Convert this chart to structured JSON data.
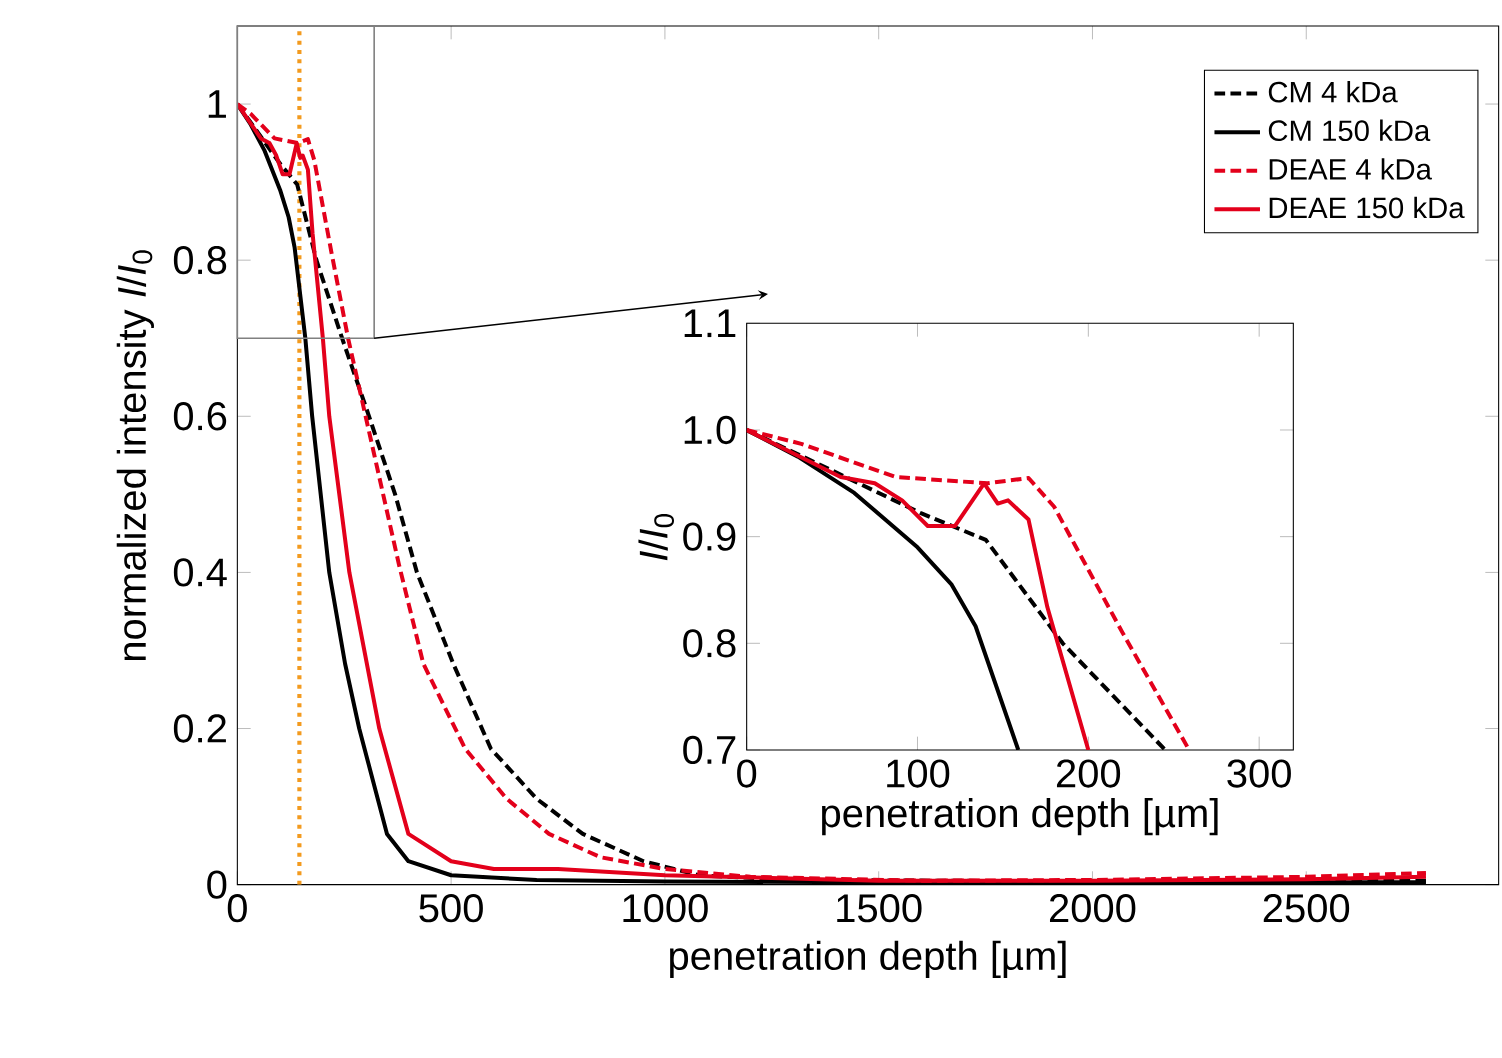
{
  "chart_data": [
    {
      "type": "line",
      "xlabel": "penetration depth [µm]",
      "ylabel": "normalized intensity *I*/*I*$_{0}$",
      "xlim": [
        0,
        2950
      ],
      "xticks": [
        0,
        500,
        1000,
        1500,
        2000,
        2500
      ],
      "ylim": [
        0,
        1.1
      ],
      "yticks": [
        0,
        0.2,
        0.4,
        0.6,
        0.8,
        1
      ],
      "legend": "top right",
      "ref_lines": [
        {
          "axis": "x",
          "value": 145,
          "color": "#f39a1e",
          "line_style": "dotted"
        }
      ],
      "series": [
        {
          "name": "CM 4 kDa",
          "color": "#000000",
          "line_style": "dashed",
          "x": [
            0,
            50,
            102,
            140,
            185,
            245,
            308,
            369,
            420,
            505,
            593,
            700,
            808,
            950,
            1080,
            1300,
            2000,
            2780
          ],
          "values": [
            1,
            0.962,
            0.922,
            0.897,
            0.8,
            0.7,
            0.6,
            0.5,
            0.4,
            0.283,
            0.174,
            0.11,
            0.065,
            0.03,
            0.012,
            0.006,
            0.004,
            0.005
          ]
        },
        {
          "name": "CM 150 kDa",
          "color": "#000000",
          "line_style": "solid",
          "x": [
            0,
            30,
            63,
            100,
            120,
            134,
            159,
            175,
            215,
            252,
            285,
            350,
            400,
            500,
            700,
            1000,
            1500,
            2000,
            2780
          ],
          "values": [
            1,
            0.975,
            0.941,
            0.89,
            0.855,
            0.816,
            0.7,
            0.6,
            0.4,
            0.283,
            0.2,
            0.065,
            0.03,
            0.012,
            0.006,
            0.004,
            0.003,
            0.003,
            0.003
          ]
        },
        {
          "name": "DEAE 4 kDa",
          "color": "#e3001b",
          "line_style": "dashed",
          "x": [
            0,
            32,
            87,
            141,
            165,
            180,
            220,
            259,
            300,
            341,
            378,
            435,
            533,
            630,
            729,
            850,
            1000,
            1200,
            1600,
            2000,
            2500,
            2780
          ],
          "values": [
            1,
            0.987,
            0.956,
            0.95,
            0.955,
            0.928,
            0.81,
            0.7,
            0.6,
            0.5,
            0.41,
            0.283,
            0.174,
            0.11,
            0.065,
            0.035,
            0.02,
            0.01,
            0.005,
            0.006,
            0.01,
            0.015
          ]
        },
        {
          "name": "DEAE 150 kDa",
          "color": "#e3001b",
          "line_style": "solid",
          "x": [
            0,
            55,
            75,
            91,
            106,
            122,
            139,
            147,
            153,
            165,
            176,
            200,
            215,
            262,
            332,
            400,
            500,
            600,
            750,
            1000,
            1500,
            2000,
            2500,
            2780
          ],
          "values": [
            1,
            0.956,
            0.95,
            0.934,
            0.91,
            0.91,
            0.95,
            0.931,
            0.934,
            0.916,
            0.834,
            0.7,
            0.6,
            0.4,
            0.2,
            0.065,
            0.03,
            0.02,
            0.02,
            0.012,
            0.005,
            0.005,
            0.007,
            0.01
          ]
        }
      ]
    },
    {
      "type": "line",
      "xlabel": "penetration depth [µm]",
      "ylabel": "*I*/*I*$_{0}$",
      "xlim": [
        0,
        320
      ],
      "xticks": [
        0,
        100,
        200,
        300
      ],
      "ylim": [
        0.7,
        1.1
      ],
      "yticks": [
        0.7,
        0.8,
        0.9,
        {
          "value": 1.0,
          "label": "1.0"
        },
        1.1
      ],
      "series": [
        {
          "color": "#000000",
          "line_style": "dashed",
          "x": [
            0,
            50,
            102,
            140,
            185,
            245
          ],
          "values": [
            1,
            0.962,
            0.922,
            0.897,
            0.8,
            0.7
          ]
        },
        {
          "color": "#000000",
          "line_style": "solid",
          "x": [
            0,
            30,
            63,
            100,
            120,
            134,
            159
          ],
          "values": [
            1,
            0.975,
            0.941,
            0.89,
            0.855,
            0.816,
            0.7
          ]
        },
        {
          "color": "#e3001b",
          "line_style": "dashed",
          "x": [
            0,
            32,
            87,
            141,
            165,
            180,
            220,
            259
          ],
          "values": [
            1,
            0.987,
            0.956,
            0.95,
            0.955,
            0.928,
            0.81,
            0.7
          ]
        },
        {
          "color": "#e3001b",
          "line_style": "solid",
          "x": [
            0,
            55,
            75,
            91,
            106,
            122,
            139,
            147,
            153,
            165,
            176,
            200
          ],
          "values": [
            1,
            0.956,
            0.95,
            0.934,
            0.91,
            0.91,
            0.95,
            0.931,
            0.934,
            0.916,
            0.834,
            0.7
          ]
        }
      ]
    }
  ]
}
